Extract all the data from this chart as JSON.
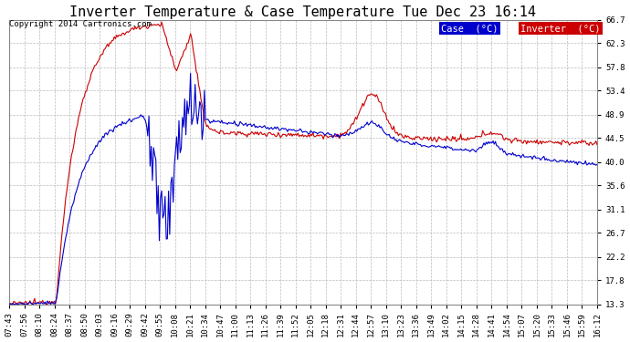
{
  "title": "Inverter Temperature & Case Temperature Tue Dec 23 16:14",
  "copyright": "Copyright 2014 Cartronics.com",
  "ylabel_right_ticks": [
    13.3,
    17.8,
    22.2,
    26.7,
    31.1,
    35.6,
    40.0,
    44.5,
    48.9,
    53.4,
    57.8,
    62.3,
    66.7
  ],
  "ylim": [
    13.3,
    66.7
  ],
  "x_labels": [
    "07:43",
    "07:56",
    "08:10",
    "08:24",
    "08:37",
    "08:50",
    "09:03",
    "09:16",
    "09:29",
    "09:42",
    "09:55",
    "10:08",
    "10:21",
    "10:34",
    "10:47",
    "11:00",
    "11:13",
    "11:26",
    "11:39",
    "11:52",
    "12:05",
    "12:18",
    "12:31",
    "12:44",
    "12:57",
    "13:10",
    "13:23",
    "13:36",
    "13:49",
    "14:02",
    "14:15",
    "14:28",
    "14:41",
    "14:54",
    "15:07",
    "15:20",
    "15:33",
    "15:46",
    "15:59",
    "16:12"
  ],
  "background_color": "#ffffff",
  "plot_bg_color": "#ffffff",
  "grid_color": "#bbbbbb",
  "case_color": "#0000cc",
  "inverter_color": "#cc0000",
  "legend_case_bg": "#0000cc",
  "legend_inverter_bg": "#cc0000",
  "title_fontsize": 11,
  "tick_fontsize": 6.5,
  "copyright_fontsize": 6.5,
  "legend_fontsize": 7.5
}
